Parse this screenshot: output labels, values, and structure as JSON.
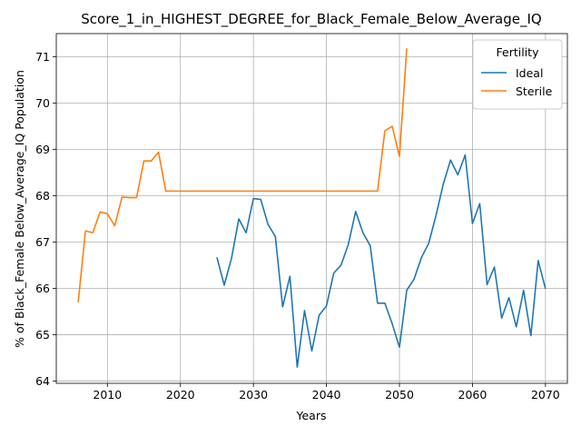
{
  "chart_data": {
    "type": "line",
    "title": "Score_1_in_HIGHEST_DEGREE_for_Black_Female_Below_Average_IQ",
    "xlabel": "Years",
    "ylabel": "% of Black_Female Below_Average_IQ Population",
    "xlim": [
      2003,
      2073
    ],
    "ylim": [
      63.95,
      71.5
    ],
    "xticks": [
      2010,
      2020,
      2030,
      2040,
      2050,
      2060,
      2070
    ],
    "yticks": [
      64,
      65,
      66,
      67,
      68,
      69,
      70,
      71
    ],
    "grid": true,
    "legend": {
      "title": "Fertility",
      "position": "top-right"
    },
    "series": [
      {
        "name": "Ideal",
        "color": "#1f77b4",
        "x": [
          2025,
          2026,
          2027,
          2028,
          2029,
          2030,
          2031,
          2032,
          2033,
          2034,
          2035,
          2036,
          2037,
          2038,
          2039,
          2040,
          2041,
          2042,
          2043,
          2044,
          2045,
          2046,
          2047,
          2048,
          2049,
          2050,
          2051,
          2052,
          2053,
          2054,
          2055,
          2056,
          2057,
          2058,
          2059,
          2060,
          2061,
          2062,
          2063,
          2064,
          2065,
          2066,
          2067,
          2068,
          2069,
          2070
        ],
        "y": [
          66.67,
          66.07,
          66.65,
          67.5,
          67.2,
          67.94,
          67.92,
          67.38,
          67.12,
          65.6,
          66.26,
          64.3,
          65.52,
          64.65,
          65.42,
          65.62,
          66.33,
          66.5,
          66.95,
          67.66,
          67.2,
          66.92,
          65.68,
          65.68,
          65.24,
          64.73,
          65.96,
          66.2,
          66.66,
          66.97,
          67.57,
          68.25,
          68.77,
          68.45,
          68.88,
          67.4,
          67.83,
          66.08,
          66.46,
          65.36,
          65.8,
          65.17,
          65.96,
          64.98,
          66.6,
          65.99
        ]
      },
      {
        "name": "Sterile",
        "color": "#ff7f0e",
        "x": [
          2006,
          2007,
          2008,
          2009,
          2010,
          2011,
          2012,
          2013,
          2014,
          2015,
          2016,
          2017,
          2018,
          2019,
          2020,
          2021,
          2022,
          2023,
          2024,
          2025,
          2026,
          2027,
          2028,
          2029,
          2030,
          2031,
          2032,
          2033,
          2034,
          2035,
          2036,
          2037,
          2038,
          2039,
          2040,
          2041,
          2042,
          2043,
          2044,
          2045,
          2046,
          2047,
          2048,
          2049,
          2050,
          2051
        ],
        "y": [
          65.7,
          67.24,
          67.2,
          67.65,
          67.61,
          67.35,
          67.97,
          67.96,
          67.96,
          68.75,
          68.75,
          68.94,
          68.1,
          68.1,
          68.1,
          68.1,
          68.1,
          68.1,
          68.1,
          68.1,
          68.1,
          68.1,
          68.1,
          68.1,
          68.1,
          68.1,
          68.1,
          68.1,
          68.1,
          68.1,
          68.1,
          68.1,
          68.1,
          68.1,
          68.1,
          68.1,
          68.1,
          68.1,
          68.1,
          68.1,
          68.1,
          68.1,
          69.4,
          69.5,
          68.85,
          71.18
        ]
      }
    ]
  }
}
